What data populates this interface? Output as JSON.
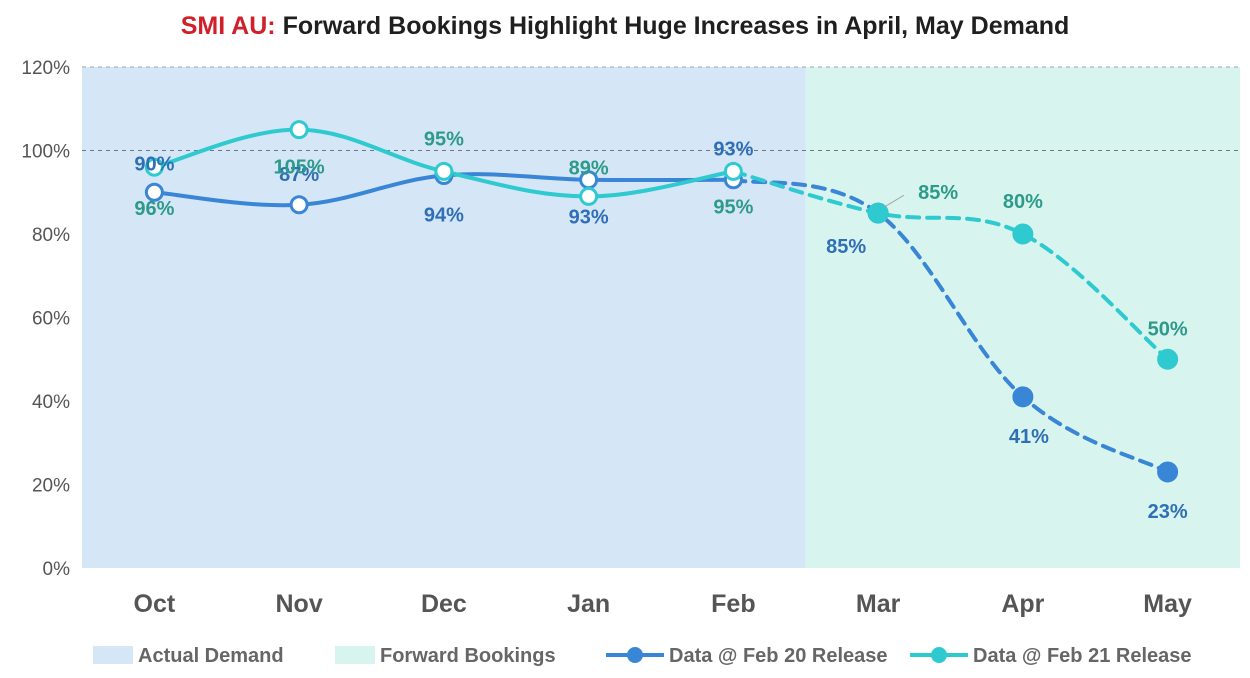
{
  "chart_data": {
    "type": "line",
    "title_prefix": "SMI AU:",
    "title_main": "Forward Bookings Highlight Huge Increases in April, May Demand",
    "categories": [
      "Oct",
      "Nov",
      "Dec",
      "Jan",
      "Feb",
      "Mar",
      "Apr",
      "May"
    ],
    "y_ticks": [
      "0%",
      "20%",
      "40%",
      "60%",
      "80%",
      "100%",
      "120%"
    ],
    "ylim": [
      0,
      120
    ],
    "reference_line": 100,
    "regions": [
      {
        "name": "Actual Demand",
        "from": "Oct",
        "to": "Feb",
        "color": "#d5e6f7"
      },
      {
        "name": "Forward Bookings",
        "from": "Mar",
        "to": "May",
        "color": "#d8f4ee"
      }
    ],
    "series": [
      {
        "name": "Data @ Feb 20 Release",
        "color": "#3a86d6",
        "label_color": "#2f6fb5",
        "values": [
          90,
          87,
          94,
          93,
          93,
          85,
          41,
          23
        ],
        "labels": [
          "90%",
          "87%",
          "94%",
          "93%",
          "93%",
          "85%",
          "41%",
          "23%"
        ]
      },
      {
        "name": "Data @ Feb 21 Release",
        "color": "#2ecad0",
        "label_color": "#2d9a8a",
        "values": [
          96,
          105,
          95,
          89,
          95,
          85,
          80,
          50
        ],
        "labels": [
          "96%",
          "105%",
          "95%",
          "89%",
          "95%",
          "85%",
          "80%",
          "50%"
        ]
      }
    ],
    "legend": [
      "Actual Demand",
      "Forward Bookings",
      "Data @ Feb 20 Release",
      "Data @ Feb 21 Release"
    ],
    "legend_position": "bottom",
    "actual_count": 5
  }
}
